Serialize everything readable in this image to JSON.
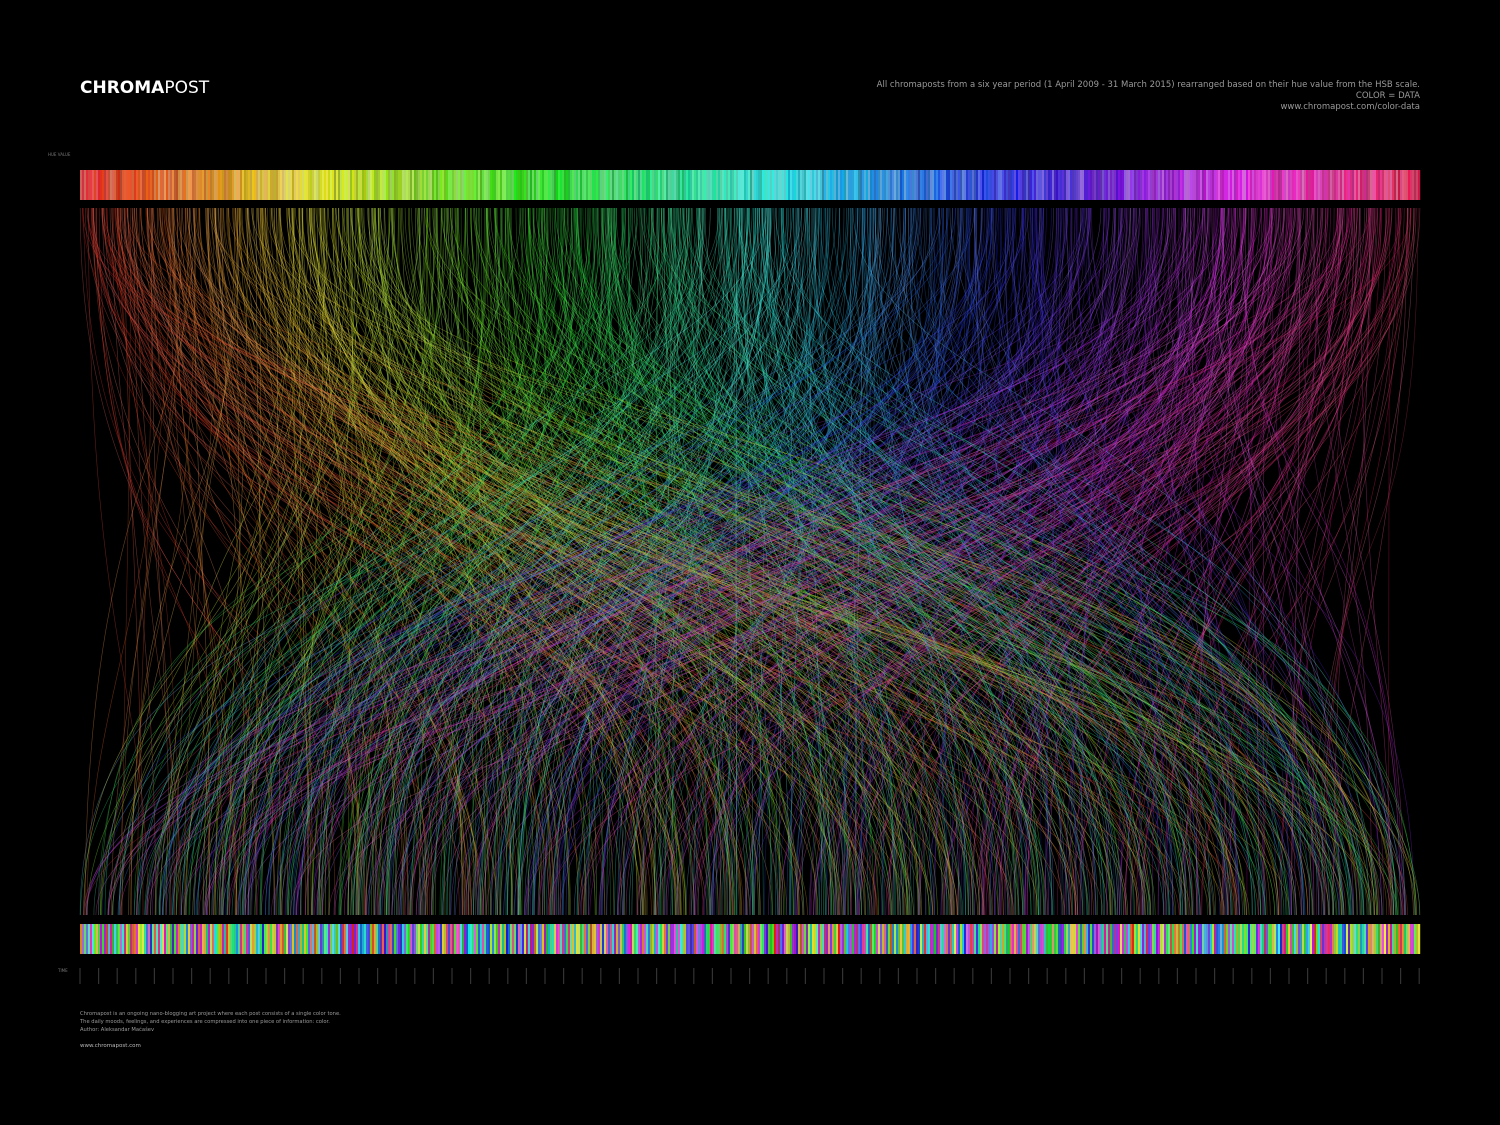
{
  "header": {
    "logo_bold": "CHROMA",
    "logo_light": "POST",
    "description": "All chromaposts from a six year period (1 April 2009 - 31 March 2015) rearranged based on their hue value from the HSB scale.",
    "tagline": "COLOR = DATA",
    "url": "www.chromapost.com/color-data"
  },
  "axes": {
    "top_label": "HUE VALUE",
    "bottom_label": "TIME"
  },
  "footer": {
    "lines": [
      "Chromapost is an ongoing nano-blogging art project where each post consists of a single color tone.",
      "The daily moods, feelings, and experiences are compressed into one piece of information: color.",
      "Author: Aleksandar Maćašev"
    ],
    "url": "www.chromapost.com"
  }
}
